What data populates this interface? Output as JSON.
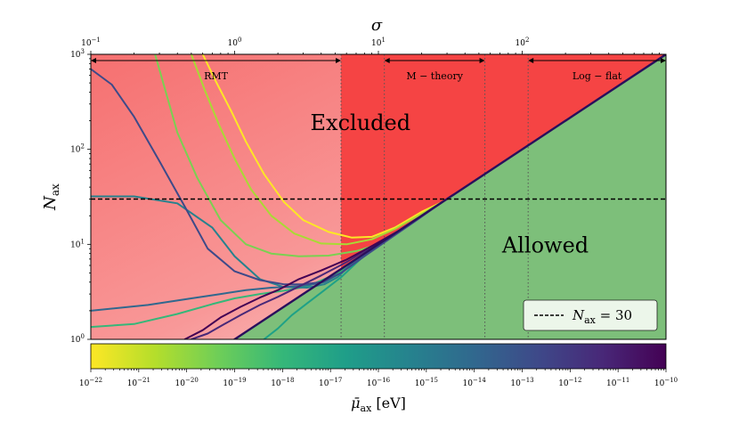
{
  "chart_data": {
    "type": "line",
    "title": "",
    "xlabel": "σ",
    "ylabel": "N_ax",
    "x_scale": "log",
    "y_scale": "log",
    "xlim": [
      0.1,
      1000
    ],
    "ylim": [
      1,
      1000
    ],
    "x_ticks": [
      {
        "value": 0.1,
        "base": "10",
        "exp": "−1"
      },
      {
        "value": 1,
        "base": "10",
        "exp": "0"
      },
      {
        "value": 10,
        "base": "10",
        "exp": "1"
      },
      {
        "value": 100,
        "base": "10",
        "exp": "2"
      }
    ],
    "y_ticks": [
      {
        "value": 1,
        "base": "10",
        "exp": "0"
      },
      {
        "value": 10,
        "base": "10",
        "exp": "1"
      },
      {
        "value": 100,
        "base": "10",
        "exp": "2"
      },
      {
        "value": 1000,
        "base": "10",
        "exp": "3"
      }
    ],
    "boundary_line": {
      "x": [
        0.1,
        1000
      ],
      "y": [
        0.1,
        1000
      ],
      "color": "#2a0f5c",
      "note": "N_ax = σ"
    },
    "regions": [
      {
        "label": "Excluded",
        "color": "#f54444",
        "at": {
          "x": 7.5,
          "y": 160
        }
      },
      {
        "label": "Allowed",
        "color": "#7dbf7a",
        "at": {
          "x": 145,
          "y": 8.2
        }
      }
    ],
    "reference_line": {
      "y": 30,
      "style": "dashed",
      "legend_label": "N_ax = 30"
    },
    "vertical_markers": [
      5.5,
      11,
      55,
      110
    ],
    "ranges": [
      {
        "label": "RMT",
        "from": 0.1,
        "to": 5.5
      },
      {
        "label": "M − theory",
        "from": 11,
        "to": 55
      },
      {
        "label": "Log − flat",
        "from": 110,
        "to": 1000
      }
    ],
    "series": [
      {
        "color": "#fde725",
        "x": [
          0.6,
          0.75,
          0.95,
          1.2,
          1.6,
          2.2,
          3,
          4.5,
          6.5,
          9,
          13,
          20,
          28
        ],
        "y": [
          1000,
          500,
          250,
          120,
          55,
          28,
          18,
          13.5,
          11.8,
          12,
          15,
          22,
          28
        ]
      },
      {
        "color": "#a8db34",
        "x": [
          0.5,
          0.62,
          0.78,
          1,
          1.3,
          1.8,
          2.6,
          4,
          6,
          9,
          13,
          20,
          28
        ],
        "y": [
          1000,
          420,
          180,
          80,
          38,
          20,
          13,
          10.2,
          10,
          11.3,
          14.5,
          21,
          28
        ]
      },
      {
        "color": "#7ad151",
        "x": [
          0.28,
          0.4,
          0.55,
          0.8,
          1.2,
          1.8,
          2.8,
          4.5,
          7,
          10,
          14,
          20,
          28
        ],
        "y": [
          1000,
          150,
          50,
          18,
          10,
          8,
          7.5,
          7.6,
          8.5,
          10,
          14,
          20,
          28
        ]
      },
      {
        "color": "#35b779",
        "x": [
          0.1,
          0.2,
          0.4,
          0.7,
          1,
          1.5,
          2.2,
          3.2,
          4.5,
          6.5,
          9,
          13,
          20,
          28
        ],
        "y": [
          1.35,
          1.45,
          1.85,
          2.35,
          2.7,
          3,
          3.25,
          3.6,
          4.5,
          6,
          9,
          13,
          20,
          28
        ]
      },
      {
        "color": "#1fa187",
        "x": [
          1.6,
          2,
          2.5,
          3.2,
          4,
          5.5,
          7.5,
          10,
          14,
          20,
          28
        ],
        "y": [
          1,
          1.3,
          1.8,
          2.4,
          3.1,
          4.5,
          7,
          10,
          14,
          20,
          28
        ]
      },
      {
        "color": "#26828e",
        "x": [
          0.1,
          0.2,
          0.4,
          0.7,
          1,
          1.5,
          2.2,
          3.2,
          4.2,
          5.2,
          7,
          10,
          14,
          20,
          28
        ],
        "y": [
          32,
          32,
          27,
          15,
          7.5,
          4.3,
          3.55,
          3.5,
          3.8,
          4.5,
          7,
          10,
          14,
          20,
          28
        ]
      },
      {
        "color": "#31688e",
        "x": [
          0.1,
          0.25,
          0.5,
          0.8,
          1.2,
          1.8,
          2.5,
          3.2,
          4.2,
          5.5,
          7.5,
          10,
          14,
          20,
          28
        ],
        "y": [
          2,
          2.3,
          2.7,
          3,
          3.3,
          3.5,
          3.6,
          3.7,
          4,
          5,
          7.3,
          10,
          14,
          20,
          28
        ]
      },
      {
        "color": "#3e4a89",
        "x": [
          0.1,
          0.14,
          0.2,
          0.3,
          0.45,
          0.65,
          1,
          1.5,
          2.2,
          3,
          4,
          5.5,
          8,
          12,
          18,
          28
        ],
        "y": [
          700,
          480,
          220,
          75,
          25,
          9,
          5.2,
          4.2,
          3.8,
          3.8,
          4,
          5,
          7.5,
          11.5,
          17.5,
          28
        ]
      },
      {
        "color": "#482878",
        "x": [
          0.5,
          0.65,
          0.85,
          1.1,
          1.5,
          2,
          2.8,
          4,
          6,
          9,
          14,
          20,
          28
        ],
        "y": [
          1,
          1.15,
          1.45,
          1.8,
          2.3,
          2.8,
          3.6,
          4.7,
          6.5,
          9.4,
          14,
          20,
          28
        ]
      },
      {
        "color": "#440154",
        "x": [
          0.45,
          0.6,
          0.8,
          1.1,
          1.5,
          2,
          2.8,
          4,
          6,
          9,
          14,
          20,
          28
        ],
        "y": [
          1,
          1.25,
          1.7,
          2.2,
          2.75,
          3.3,
          4.3,
          5.3,
          6.9,
          9.6,
          14,
          20,
          28
        ]
      }
    ],
    "colorbar": {
      "label_symbol": "μ̄",
      "label_sub": "ax",
      "label_unit": "[eV]",
      "min": 1e-22,
      "max": 1e-10,
      "tick_exps": [
        "−22",
        "−21",
        "−20",
        "−19",
        "−18",
        "−17",
        "−16",
        "−15",
        "−14",
        "−13",
        "−12",
        "−11",
        "−10"
      ],
      "tick_base": "10",
      "colors": [
        "#fde725",
        "#b5de2b",
        "#6ece58",
        "#35b779",
        "#1f9e89",
        "#26828e",
        "#31688e",
        "#3e4989",
        "#482878",
        "#440154"
      ]
    },
    "legend": {
      "placement": "lower-right",
      "entries": [
        {
          "label": "N_ax = 30",
          "style": "dashed",
          "color": "#000000"
        }
      ]
    }
  }
}
